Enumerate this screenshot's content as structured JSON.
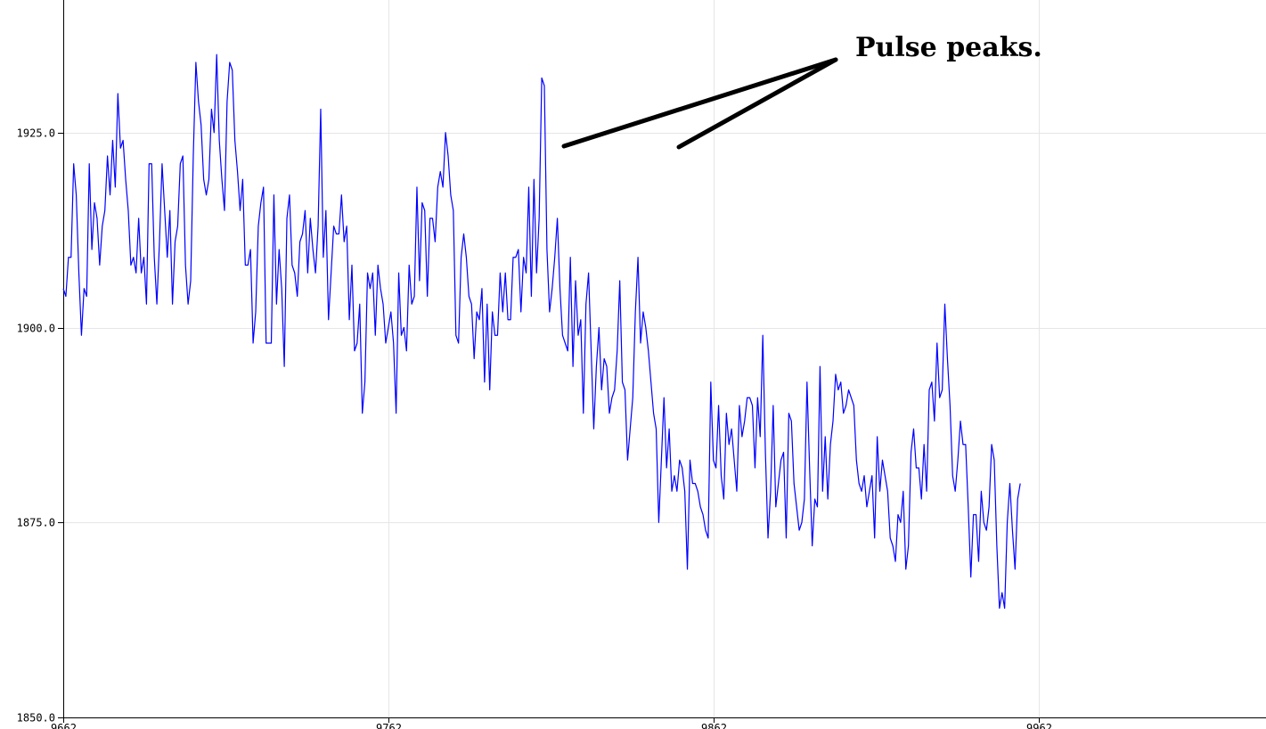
{
  "chart_data": {
    "type": "line",
    "title": "",
    "xlabel": "",
    "ylabel": "",
    "xlim": [
      9662,
      10032
    ],
    "ylim": [
      1850,
      1942
    ],
    "grid": true,
    "x_ticks": [
      {
        "value": 9662,
        "label": "9662"
      },
      {
        "value": 9762,
        "label": "9762"
      },
      {
        "value": 9862,
        "label": "9862"
      },
      {
        "value": 9962,
        "label": "9962"
      }
    ],
    "y_ticks": [
      {
        "value": 1850,
        "label": "1850.0"
      },
      {
        "value": 1875,
        "label": "1875.0"
      },
      {
        "value": 1900,
        "label": "1900.0"
      },
      {
        "value": 1925,
        "label": "1925.0"
      }
    ],
    "series": [
      {
        "color": "#0000ff",
        "x_start": 9662,
        "x_step": 0.8,
        "values": [
          1905,
          1904,
          1909,
          1909,
          1921,
          1917,
          1907,
          1899,
          1905,
          1904,
          1921,
          1910,
          1916,
          1914,
          1908,
          1913,
          1915,
          1922,
          1917,
          1924,
          1918,
          1930,
          1923,
          1924,
          1919,
          1915,
          1908,
          1909,
          1907,
          1914,
          1907,
          1909,
          1903,
          1921,
          1921,
          1909,
          1903,
          1911,
          1921,
          1915,
          1909,
          1915,
          1903,
          1911,
          1913,
          1921,
          1922,
          1908,
          1903,
          1906,
          1922,
          1934,
          1929,
          1926,
          1919,
          1917,
          1919,
          1928,
          1925,
          1935,
          1924,
          1919,
          1915,
          1929,
          1934,
          1933,
          1924,
          1920,
          1915,
          1919,
          1908,
          1908,
          1910,
          1898,
          1902,
          1913,
          1916,
          1918,
          1898,
          1898,
          1898,
          1917,
          1903,
          1910,
          1905,
          1895,
          1914,
          1917,
          1908,
          1907,
          1904,
          1911,
          1912,
          1915,
          1907,
          1914,
          1910,
          1907,
          1913,
          1928,
          1909,
          1915,
          1901,
          1907,
          1913,
          1912,
          1912,
          1917,
          1911,
          1913,
          1901,
          1908,
          1897,
          1898,
          1903,
          1889,
          1893,
          1907,
          1905,
          1907,
          1899,
          1908,
          1905,
          1903,
          1898,
          1900,
          1902,
          1898,
          1889,
          1907,
          1899,
          1900,
          1897,
          1908,
          1903,
          1904,
          1918,
          1906,
          1916,
          1915,
          1904,
          1914,
          1914,
          1911,
          1918,
          1920,
          1918,
          1925,
          1922,
          1917,
          1915,
          1899,
          1898,
          1909,
          1912,
          1909,
          1904,
          1903,
          1896,
          1902,
          1901,
          1905,
          1893,
          1903,
          1892,
          1902,
          1899,
          1899,
          1907,
          1902,
          1907,
          1901,
          1901,
          1909,
          1909,
          1910,
          1902,
          1909,
          1907,
          1918,
          1904,
          1919,
          1907,
          1914,
          1932,
          1931,
          1910,
          1902,
          1905,
          1909,
          1914,
          1905,
          1899,
          1898,
          1897,
          1909,
          1895,
          1906,
          1899,
          1901,
          1889,
          1903,
          1907,
          1897,
          1887,
          1895,
          1900,
          1892,
          1896,
          1895,
          1889,
          1891,
          1892,
          1897,
          1906,
          1893,
          1892,
          1883,
          1887,
          1891,
          1902,
          1909,
          1898,
          1902,
          1900,
          1897,
          1893,
          1889,
          1887,
          1875,
          1883,
          1891,
          1882,
          1887,
          1879,
          1881,
          1879,
          1883,
          1882,
          1879,
          1869,
          1883,
          1880,
          1880,
          1879,
          1877,
          1876,
          1874,
          1873,
          1893,
          1883,
          1882,
          1890,
          1881,
          1878,
          1889,
          1885,
          1887,
          1883,
          1879,
          1890,
          1886,
          1888,
          1891,
          1891,
          1890,
          1882,
          1891,
          1886,
          1899,
          1884,
          1873,
          1879,
          1890,
          1877,
          1880,
          1883,
          1884,
          1873,
          1889,
          1888,
          1880,
          1877,
          1874,
          1875,
          1878,
          1893,
          1882,
          1872,
          1878,
          1877,
          1895,
          1879,
          1886,
          1878,
          1885,
          1888,
          1894,
          1892,
          1893,
          1889,
          1890,
          1892,
          1891,
          1890,
          1883,
          1880,
          1879,
          1881,
          1877,
          1879,
          1881,
          1873,
          1886,
          1879,
          1883,
          1881,
          1879,
          1873,
          1872,
          1870,
          1876,
          1875,
          1879,
          1869,
          1872,
          1884,
          1887,
          1882,
          1882,
          1878,
          1885,
          1879,
          1892,
          1893,
          1888,
          1898,
          1891,
          1892,
          1903,
          1896,
          1890,
          1881,
          1879,
          1883,
          1888,
          1885,
          1885,
          1877,
          1868,
          1876,
          1876,
          1870,
          1879,
          1875,
          1874,
          1877,
          1885,
          1883,
          1872,
          1864,
          1866,
          1864,
          1875,
          1880,
          1874,
          1869,
          1878,
          1880
        ]
      }
    ],
    "annotations": [
      {
        "text": "Pulse peaks."
      }
    ]
  }
}
